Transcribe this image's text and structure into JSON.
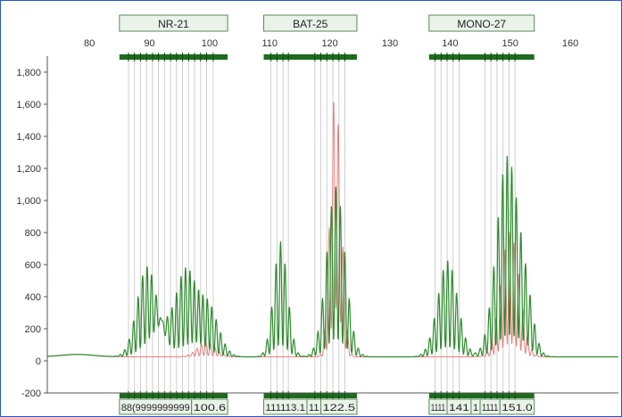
{
  "markers": [
    {
      "name": "NR-21",
      "range": [
        85,
        103
      ]
    },
    {
      "name": "BAT-25",
      "range": [
        109,
        124.5
      ]
    },
    {
      "name": "MONO-27",
      "range": [
        136.5,
        154
      ]
    }
  ],
  "bin_labels": [
    {
      "text": "88(9999999999",
      "range": [
        85,
        97
      ]
    },
    {
      "text": "100.6",
      "range": [
        97,
        103
      ]
    },
    {
      "text": "111113.1",
      "range": [
        109,
        116.2
      ]
    },
    {
      "text": "11",
      "range": [
        116.2,
        118.5
      ]
    },
    {
      "text": "122.5",
      "range": [
        118.5,
        124.5
      ]
    },
    {
      "text": "1111",
      "range": [
        136.5,
        139.5
      ]
    },
    {
      "text": "141",
      "range": [
        139.5,
        143.5
      ]
    },
    {
      "text": "1",
      "range": [
        143.5,
        145
      ]
    },
    {
      "text": "1111",
      "range": [
        145,
        148.3
      ]
    },
    {
      "text": "151.0",
      "range": [
        148.3,
        154
      ]
    }
  ],
  "chart_data": {
    "type": "line",
    "xlim": [
      73,
      168
    ],
    "ylim": [
      -200,
      1900
    ],
    "x_ticks": [
      80,
      90,
      100,
      110,
      120,
      130,
      140,
      150,
      160
    ],
    "y_ticks": [
      -200,
      0,
      200,
      400,
      600,
      800,
      "1,000",
      "1,200",
      "1,400",
      "1,600",
      "1,800"
    ],
    "y_tick_values": [
      -200,
      0,
      200,
      400,
      600,
      800,
      1000,
      1200,
      1400,
      1600,
      1800
    ],
    "grid": false,
    "bin_lines": [
      86.5,
      87.5,
      88.5,
      89.5,
      90.5,
      91.5,
      92.5,
      93.5,
      94.5,
      95.5,
      96.5,
      97.5,
      98.5,
      99.5,
      100.6,
      110.2,
      111.2,
      112.2,
      113.1,
      117.5,
      118.5,
      119.5,
      120.5,
      121.5,
      122.5,
      137.5,
      138.5,
      139.5,
      140.5,
      141.5,
      145.8,
      146.8,
      147.8,
      148.8,
      149.8,
      150.8
    ],
    "series": [
      {
        "color": "#2e8b2e",
        "peaks": [
          {
            "center": 89.6,
            "height": 560,
            "width": 1.3
          },
          {
            "center": 92.2,
            "height": 170,
            "width": 1.2
          },
          {
            "center": 96.0,
            "height": 520,
            "width": 1.3
          },
          {
            "center": 99.6,
            "height": 330,
            "width": 1.4
          },
          {
            "center": 111.8,
            "height": 720,
            "width": 0.9
          },
          {
            "center": 121.0,
            "height": 1060,
            "width": 1.2
          },
          {
            "center": 139.6,
            "height": 600,
            "width": 1.3
          },
          {
            "center": 149.5,
            "height": 1240,
            "width": 1.4
          },
          {
            "center": 152.6,
            "height": 320,
            "width": 1.0
          }
        ]
      },
      {
        "color": "#e06a6a",
        "peaks": [
          {
            "center": 99.5,
            "height": 90,
            "width": 1.2
          },
          {
            "center": 120.7,
            "height": 1380,
            "width": 0.6
          },
          {
            "center": 121.6,
            "height": 700,
            "width": 0.6
          },
          {
            "center": 150.0,
            "height": 780,
            "width": 1.2
          }
        ]
      }
    ]
  }
}
